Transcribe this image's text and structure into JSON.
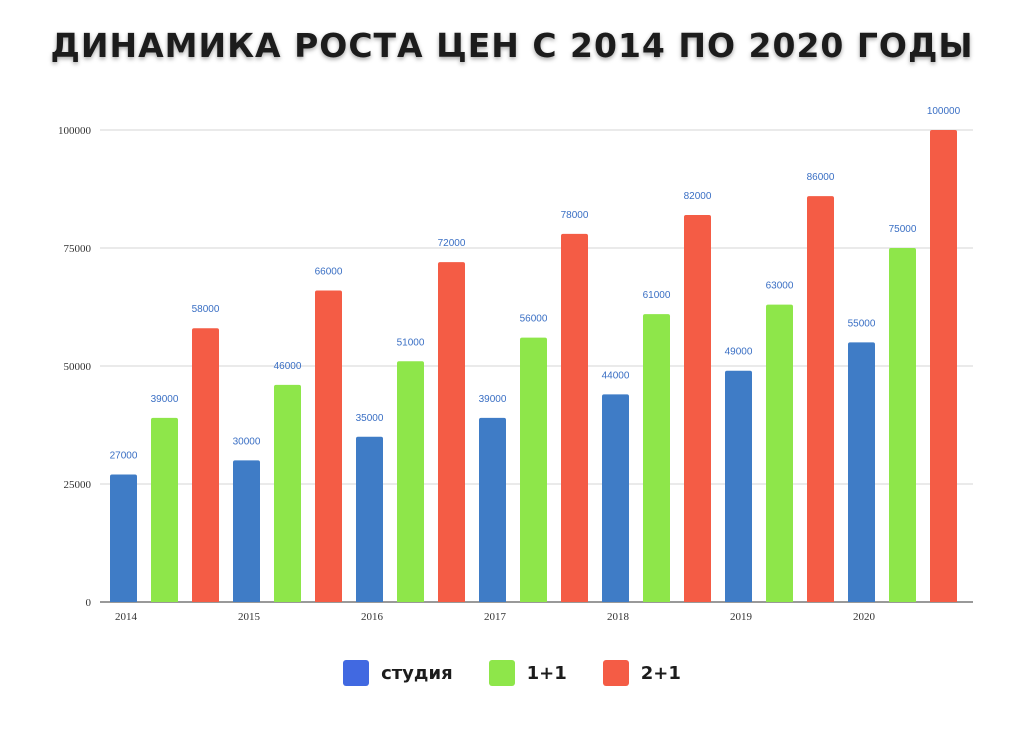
{
  "chart_data": {
    "type": "bar",
    "title": "ДИНАМИКА РОСТА ЦЕН С 2014 ПО 2020 ГОДЫ",
    "categories": [
      "2014",
      "2015",
      "2016",
      "2017",
      "2018",
      "2019",
      "2020"
    ],
    "series": [
      {
        "name": "студия",
        "color": "#3f7cc6",
        "legend_color": "#4169e1",
        "values": [
          27000,
          30000,
          35000,
          39000,
          44000,
          49000,
          55000
        ]
      },
      {
        "name": "1+1",
        "color": "#8ee64a",
        "legend_color": "#8ee64a",
        "values": [
          39000,
          46000,
          51000,
          56000,
          61000,
          63000,
          75000
        ]
      },
      {
        "name": "2+1",
        "color": "#f45c45",
        "legend_color": "#f45c45",
        "values": [
          58000,
          66000,
          72000,
          78000,
          82000,
          86000,
          100000
        ]
      }
    ],
    "ylim": [
      0,
      100000
    ],
    "yticks": [
      0,
      25000,
      50000,
      75000,
      100000
    ],
    "data_label_color": "#3a6fc4",
    "grid": true,
    "legend_position": "bottom",
    "xlabel": "",
    "ylabel": ""
  }
}
